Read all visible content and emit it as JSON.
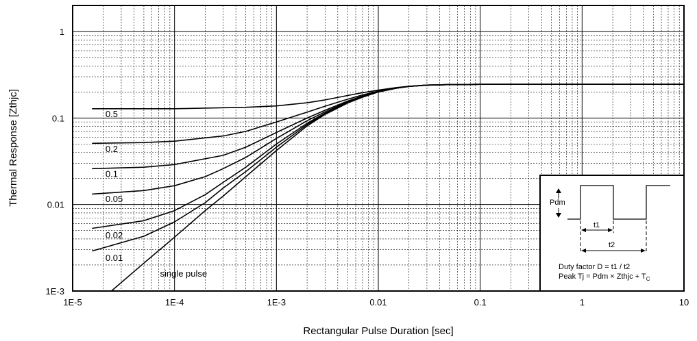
{
  "chart_data": {
    "type": "line",
    "x_scale": "log",
    "y_scale": "log",
    "xlim": [
      1e-05,
      10
    ],
    "ylim": [
      0.001,
      2
    ],
    "grid": true,
    "xlabel": "Rectangular Pulse Duration [sec]",
    "ylabel": "Thermal Response [Zthjc]",
    "x_tick_labels": [
      "1E-5",
      "1E-4",
      "1E-3",
      "0.01",
      "0.1",
      "1",
      "10"
    ],
    "y_tick_labels": [
      "1E-3",
      "0.01",
      "0.1",
      "1"
    ],
    "x_ticks": [
      1e-05,
      0.0001,
      0.001,
      0.01,
      0.1,
      1,
      10
    ],
    "y_ticks": [
      0.001,
      0.01,
      0.1,
      1
    ],
    "series": [
      {
        "name": "0.5",
        "x": [
          1.55e-05,
          0.0001,
          0.0005,
          0.001,
          0.002,
          0.003,
          0.005,
          0.007,
          0.01,
          0.015,
          0.02,
          0.03,
          0.05,
          0.1,
          1,
          10
        ],
        "y": [
          0.128,
          0.128,
          0.133,
          0.138,
          0.15,
          0.162,
          0.182,
          0.196,
          0.21,
          0.225,
          0.233,
          0.24,
          0.243,
          0.245,
          0.245,
          0.245
        ]
      },
      {
        "name": "0.2",
        "x": [
          1.55e-05,
          5e-05,
          0.0001,
          0.0003,
          0.0005,
          0.001,
          0.002,
          0.003,
          0.005,
          0.007,
          0.01,
          0.015,
          0.02,
          0.03,
          0.05,
          0.1,
          1,
          10
        ],
        "y": [
          0.051,
          0.052,
          0.054,
          0.062,
          0.07,
          0.09,
          0.117,
          0.137,
          0.165,
          0.185,
          0.205,
          0.222,
          0.232,
          0.24,
          0.243,
          0.245,
          0.245,
          0.245
        ]
      },
      {
        "name": "0.1",
        "x": [
          1.55e-05,
          5e-05,
          0.0001,
          0.0003,
          0.0005,
          0.001,
          0.002,
          0.003,
          0.005,
          0.007,
          0.01,
          0.015,
          0.02,
          0.03,
          0.05,
          0.1,
          1,
          10
        ],
        "y": [
          0.026,
          0.027,
          0.029,
          0.037,
          0.046,
          0.068,
          0.1,
          0.123,
          0.157,
          0.18,
          0.203,
          0.222,
          0.232,
          0.24,
          0.243,
          0.245,
          0.245,
          0.245
        ]
      },
      {
        "name": "0.05",
        "x": [
          1.55e-05,
          5e-05,
          0.0001,
          0.0002,
          0.0003,
          0.0005,
          0.001,
          0.002,
          0.003,
          0.005,
          0.007,
          0.01,
          0.015,
          0.02,
          0.03,
          0.05,
          0.1,
          1,
          10
        ],
        "y": [
          0.0132,
          0.0145,
          0.0165,
          0.021,
          0.026,
          0.035,
          0.058,
          0.093,
          0.118,
          0.154,
          0.178,
          0.202,
          0.222,
          0.232,
          0.24,
          0.243,
          0.245,
          0.245,
          0.245
        ]
      },
      {
        "name": "0.02",
        "x": [
          1.55e-05,
          5e-05,
          0.0001,
          0.0002,
          0.0003,
          0.0005,
          0.001,
          0.002,
          0.003,
          0.005,
          0.007,
          0.01,
          0.015,
          0.02,
          0.03,
          0.05,
          0.1,
          1,
          10
        ],
        "y": [
          0.0053,
          0.0065,
          0.0085,
          0.013,
          0.018,
          0.027,
          0.05,
          0.087,
          0.114,
          0.151,
          0.176,
          0.201,
          0.221,
          0.232,
          0.24,
          0.243,
          0.245,
          0.245,
          0.245
        ]
      },
      {
        "name": "0.01",
        "x": [
          1.55e-05,
          5e-05,
          0.0001,
          0.0002,
          0.0003,
          0.0005,
          0.001,
          0.002,
          0.003,
          0.005,
          0.007,
          0.01,
          0.015,
          0.02,
          0.03,
          0.05,
          0.1,
          1,
          10
        ],
        "y": [
          0.0029,
          0.0043,
          0.0063,
          0.0105,
          0.0155,
          0.024,
          0.046,
          0.084,
          0.112,
          0.15,
          0.175,
          0.2,
          0.221,
          0.232,
          0.24,
          0.243,
          0.245,
          0.245,
          0.245
        ]
      },
      {
        "name": "single pulse",
        "x": [
          2.4e-05,
          5e-05,
          0.0001,
          0.0002,
          0.0003,
          0.0005,
          0.001,
          0.002,
          0.003,
          0.005,
          0.007,
          0.01,
          0.015,
          0.02,
          0.03,
          0.05,
          0.1,
          1,
          10
        ],
        "y": [
          0.001,
          0.0021,
          0.0042,
          0.0085,
          0.0125,
          0.021,
          0.042,
          0.081,
          0.11,
          0.149,
          0.174,
          0.2,
          0.221,
          0.232,
          0.24,
          0.243,
          0.245,
          0.245,
          0.245
        ]
      }
    ],
    "curve_labels": [
      {
        "text": "0.5",
        "x": 2.1e-05,
        "y": 0.112
      },
      {
        "text": "0.2",
        "x": 2.1e-05,
        "y": 0.0445
      },
      {
        "text": "0.1",
        "x": 2.1e-05,
        "y": 0.0227
      },
      {
        "text": "0.05",
        "x": 2.1e-05,
        "y": 0.0117
      },
      {
        "text": "0.02",
        "x": 2.1e-05,
        "y": 0.00445
      },
      {
        "text": "0.01",
        "x": 2.1e-05,
        "y": 0.00245
      },
      {
        "text": "single pulse",
        "x": 7.2e-05,
        "y": 0.0016
      }
    ]
  },
  "inset": {
    "pdm_label": "Pdm",
    "t1_label": "t1",
    "t2_label": "t2",
    "duty_factor_text": "Duty factor D = t1 / t2",
    "peak_tj_text": "Peak Tj = Pdm × Zthjc + T",
    "peak_tj_subscript": "C"
  }
}
